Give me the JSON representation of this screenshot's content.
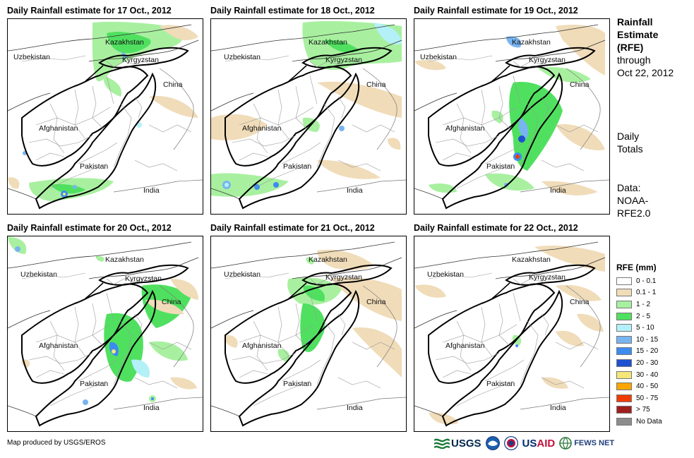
{
  "panels": [
    {
      "title": "Daily Rainfall estimate for 17 Oct., 2012",
      "rain": "d17"
    },
    {
      "title": "Daily Rainfall estimate for 18 Oct., 2012",
      "rain": "d18"
    },
    {
      "title": "Daily Rainfall estimate for 19 Oct., 2012",
      "rain": "d19"
    },
    {
      "title": "Daily Rainfall estimate for 20 Oct., 2012",
      "rain": "d20"
    },
    {
      "title": "Daily Rainfall estimate for 21 Oct., 2012",
      "rain": "d21"
    },
    {
      "title": "Daily Rainfall estimate for 22 Oct., 2012",
      "rain": "d22"
    }
  ],
  "map_labels": {
    "kazakhstan": "Kazakhstan",
    "uzbekistan": "Uzbekistan",
    "kyrgyzstan": "Kyrgyzstan",
    "china": "China",
    "afghanistan": "Afghanistan",
    "pakistan": "Pakistan",
    "india": "India"
  },
  "side": {
    "title_line1": "Rainfall",
    "title_line2": "Estimate",
    "title_line3": "(RFE)",
    "title_line4": "through",
    "title_line5": "Oct 22, 2012",
    "daily_line1": "Daily",
    "daily_line2": "Totals",
    "data_line1": "Data:",
    "data_line2": "NOAA-",
    "data_line3": "RFE2.0"
  },
  "legend": {
    "title": "RFE (mm)",
    "entries": [
      {
        "label": "0 - 0.1",
        "color": "#ffffff"
      },
      {
        "label": "0.1 - 1",
        "color": "#f0dcb9"
      },
      {
        "label": "1 - 2",
        "color": "#a8f0a0"
      },
      {
        "label": "2 - 5",
        "color": "#50e060"
      },
      {
        "label": "5 - 10",
        "color": "#b4f0f8"
      },
      {
        "label": "10 - 15",
        "color": "#78b4f0"
      },
      {
        "label": "15 - 20",
        "color": "#3c8cf0"
      },
      {
        "label": "20 - 30",
        "color": "#1e50d2"
      },
      {
        "label": "30 - 40",
        "color": "#f5e678"
      },
      {
        "label": "40 - 50",
        "color": "#faa500"
      },
      {
        "label": "50 - 75",
        "color": "#f03c00"
      },
      {
        "label": "> 75",
        "color": "#a01e1e"
      },
      {
        "label": "No Data",
        "color": "#8c8c8c"
      }
    ]
  },
  "footer": {
    "credit": "Map produced by USGS/EROS",
    "usgs": "USGS",
    "usaid_us": "US",
    "usaid_aid": "AID",
    "fews": "FEWS NET"
  }
}
